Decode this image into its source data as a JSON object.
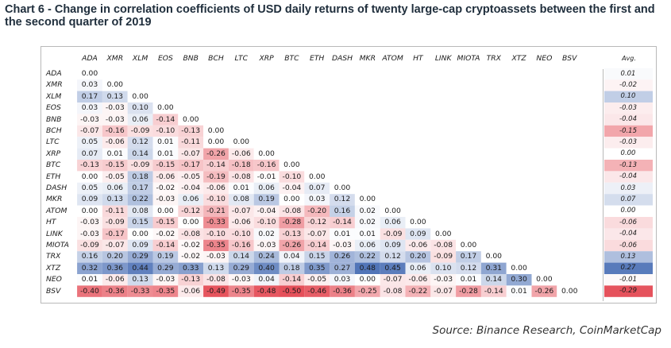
{
  "title": "Chart 6 - Change in correlation coefficients of USD daily returns of twenty large-cap cryptoassets between the first and the second quarter of 2019",
  "source": "Source: Binance Research, CoinMarketCap",
  "avg_label": "Avg.",
  "colors": {
    "positive": "#4a6fb5",
    "negative": "#e5505a",
    "title": "#1f2e3c"
  },
  "chart_data": {
    "type": "heatmap",
    "title": "Chart 6 - Change in correlation coefficients of USD daily returns of twenty large-cap cryptoassets between the first and the second quarter of 2019",
    "columns": [
      "ADA",
      "XMR",
      "XLM",
      "EOS",
      "BNB",
      "BCH",
      "LTC",
      "XRP",
      "BTC",
      "ETH",
      "DASH",
      "MKR",
      "ATOM",
      "HT",
      "LINK",
      "MIOTA",
      "TRX",
      "XTZ",
      "NEO",
      "BSV"
    ],
    "rows": [
      {
        "name": "ADA",
        "values": [
          "0.00"
        ],
        "avg": "0.01"
      },
      {
        "name": "XMR",
        "values": [
          "0.03",
          "0.00"
        ],
        "avg": "-0.02"
      },
      {
        "name": "XLM",
        "values": [
          "0.17",
          "0.13",
          "0.00"
        ],
        "avg": "0.10"
      },
      {
        "name": "EOS",
        "values": [
          "0.03",
          "-0.03",
          "0.10",
          "0.00"
        ],
        "avg": "-0.03"
      },
      {
        "name": "BNB",
        "values": [
          "-0.03",
          "-0.03",
          "0.06",
          "-0.14",
          "0.00"
        ],
        "avg": "-0.04"
      },
      {
        "name": "BCH",
        "values": [
          "-0.07",
          "-0.16",
          "-0.09",
          "-0.10",
          "-0.13",
          "0.00"
        ],
        "avg": "-0.15"
      },
      {
        "name": "LTC",
        "values": [
          "0.05",
          "-0.06",
          "0.12",
          "0.01",
          "-0.11",
          "0.00",
          "0.00"
        ],
        "avg": "-0.03"
      },
      {
        "name": "XRP",
        "values": [
          "0.07",
          "0.01",
          "0.14",
          "0.01",
          "-0.07",
          "-0.26",
          "-0.06",
          "0.00"
        ],
        "avg": "0.00"
      },
      {
        "name": "BTC",
        "values": [
          "-0.13",
          "-0.15",
          "-0.09",
          "-0.15",
          "-0.17",
          "-0.14",
          "-0.18",
          "-0.16",
          "0.00"
        ],
        "avg": "-0.13"
      },
      {
        "name": "ETH",
        "values": [
          "0.00",
          "-0.05",
          "0.18",
          "-0.06",
          "-0.05",
          "-0.19",
          "-0.08",
          "-0.01",
          "-0.10",
          "0.00"
        ],
        "avg": "-0.04"
      },
      {
        "name": "DASH",
        "values": [
          "0.05",
          "0.06",
          "0.17",
          "-0.02",
          "-0.04",
          "-0.06",
          "0.01",
          "0.06",
          "-0.04",
          "0.07",
          "0.00"
        ],
        "avg": "0.03"
      },
      {
        "name": "MKR",
        "values": [
          "0.09",
          "0.13",
          "0.22",
          "-0.03",
          "0.06",
          "-0.10",
          "0.08",
          "0.19",
          "0.00",
          "0.03",
          "0.12",
          "0.00"
        ],
        "avg": "0.07"
      },
      {
        "name": "ATOM",
        "values": [
          "0.00",
          "-0.11",
          "0.08",
          "0.00",
          "-0.12",
          "-0.21",
          "-0.07",
          "-0.04",
          "-0.08",
          "-0.20",
          "0.16",
          "0.02",
          "0.00"
        ],
        "avg": "0.00"
      },
      {
        "name": "HT",
        "values": [
          "-0.03",
          "-0.09",
          "0.15",
          "-0.15",
          "0.00",
          "-0.33",
          "-0.06",
          "-0.10",
          "-0.28",
          "-0.12",
          "-0.14",
          "0.02",
          "0.06",
          "0.00"
        ],
        "avg": "-0.06"
      },
      {
        "name": "LINK",
        "values": [
          "-0.03",
          "-0.17",
          "0.00",
          "-0.02",
          "-0.08",
          "-0.10",
          "-0.10",
          "0.02",
          "-0.13",
          "-0.07",
          "0.01",
          "0.01",
          "-0.09",
          "0.09",
          "0.00"
        ],
        "avg": "-0.04"
      },
      {
        "name": "MIOTA",
        "values": [
          "-0.09",
          "-0.07",
          "0.09",
          "-0.14",
          "-0.02",
          "-0.35",
          "-0.16",
          "-0.03",
          "-0.26",
          "-0.14",
          "-0.03",
          "0.06",
          "0.09",
          "-0.06",
          "-0.08",
          "0.00"
        ],
        "avg": "-0.06"
      },
      {
        "name": "TRX",
        "values": [
          "0.16",
          "0.20",
          "0.29",
          "0.19",
          "-0.02",
          "-0.03",
          "0.14",
          "0.24",
          "0.04",
          "0.15",
          "0.26",
          "0.22",
          "0.12",
          "0.20",
          "-0.09",
          "0.17",
          "0.00"
        ],
        "avg": "0.13"
      },
      {
        "name": "XTZ",
        "values": [
          "0.32",
          "0.36",
          "0.44",
          "0.29",
          "0.33",
          "0.13",
          "0.29",
          "0.40",
          "0.18",
          "0.35",
          "0.27",
          "0.48",
          "0.45",
          "0.06",
          "0.10",
          "0.12",
          "0.31",
          "0.00"
        ],
        "avg": "0.27"
      },
      {
        "name": "NEO",
        "values": [
          "0.01",
          "-0.06",
          "0.13",
          "-0.03",
          "-0.13",
          "-0.08",
          "-0.03",
          "0.04",
          "-0.14",
          "-0.05",
          "0.03",
          "0.00",
          "-0.07",
          "-0.06",
          "-0.03",
          "0.01",
          "0.14",
          "0.30",
          "0.00"
        ],
        "avg": "-0.01"
      },
      {
        "name": "BSV",
        "values": [
          "-0.40",
          "-0.36",
          "-0.33",
          "-0.35",
          "-0.06",
          "-0.49",
          "-0.35",
          "-0.48",
          "-0.50",
          "-0.46",
          "-0.36",
          "-0.25",
          "-0.08",
          "-0.22",
          "-0.07",
          "-0.28",
          "-0.14",
          "0.01",
          "-0.26",
          "0.00"
        ],
        "avg": "-0.29"
      }
    ]
  }
}
